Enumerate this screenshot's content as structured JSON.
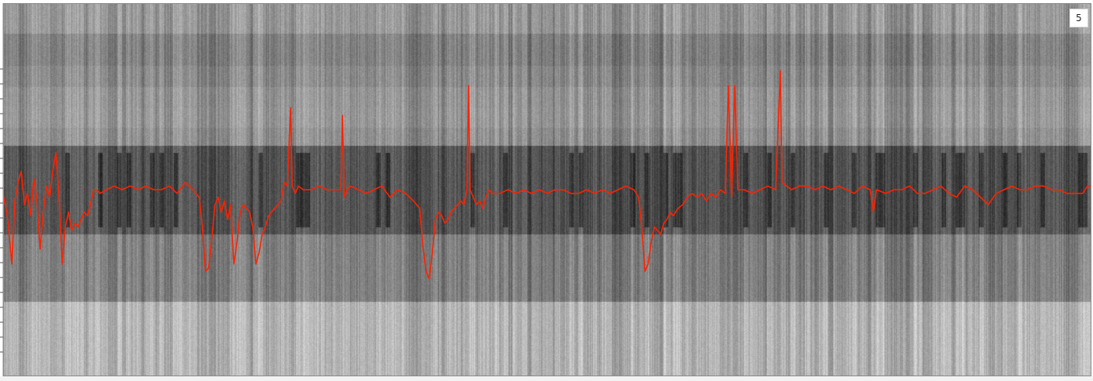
{
  "panel": {
    "track_number": "5"
  },
  "colors": {
    "trace": "#ff2200",
    "background_light": "#c9c9c9",
    "background_dark": "#111111"
  },
  "chart_data": {
    "type": "line",
    "overlay_on": "spectrogram",
    "grid": false,
    "title": "",
    "xlabel": "",
    "ylabel": "",
    "xlim": [
      0,
      1380
    ],
    "ylim": [
      0,
      100
    ],
    "y_direction": "up",
    "series": [
      {
        "name": "",
        "points": [
          [
            0,
            48
          ],
          [
            5,
            42
          ],
          [
            10,
            30
          ],
          [
            14,
            47
          ],
          [
            18,
            52
          ],
          [
            22,
            55
          ],
          [
            26,
            46
          ],
          [
            30,
            49
          ],
          [
            34,
            43
          ],
          [
            38,
            53
          ],
          [
            42,
            47
          ],
          [
            46,
            34
          ],
          [
            50,
            44
          ],
          [
            54,
            51
          ],
          [
            58,
            48
          ],
          [
            62,
            55
          ],
          [
            66,
            60
          ],
          [
            70,
            48
          ],
          [
            74,
            30
          ],
          [
            78,
            40
          ],
          [
            82,
            44
          ],
          [
            86,
            39
          ],
          [
            90,
            41
          ],
          [
            94,
            40
          ],
          [
            98,
            42
          ],
          [
            102,
            44
          ],
          [
            106,
            43
          ],
          [
            110,
            46
          ],
          [
            114,
            50
          ],
          [
            118,
            50
          ],
          [
            122,
            49
          ],
          [
            130,
            50
          ],
          [
            140,
            51
          ],
          [
            150,
            50
          ],
          [
            160,
            51
          ],
          [
            170,
            50
          ],
          [
            180,
            51
          ],
          [
            190,
            50
          ],
          [
            200,
            50
          ],
          [
            210,
            51
          ],
          [
            220,
            49
          ],
          [
            230,
            52
          ],
          [
            240,
            50
          ],
          [
            248,
            48
          ],
          [
            252,
            40
          ],
          [
            256,
            28
          ],
          [
            260,
            29
          ],
          [
            264,
            37
          ],
          [
            268,
            46
          ],
          [
            272,
            48
          ],
          [
            276,
            44
          ],
          [
            280,
            47
          ],
          [
            284,
            42
          ],
          [
            288,
            46
          ],
          [
            292,
            30
          ],
          [
            296,
            36
          ],
          [
            300,
            44
          ],
          [
            304,
            46
          ],
          [
            308,
            45
          ],
          [
            312,
            44
          ],
          [
            316,
            40
          ],
          [
            320,
            30
          ],
          [
            324,
            33
          ],
          [
            328,
            38
          ],
          [
            332,
            40
          ],
          [
            336,
            43
          ],
          [
            340,
            44
          ],
          [
            344,
            45
          ],
          [
            348,
            46
          ],
          [
            352,
            47
          ],
          [
            356,
            52
          ],
          [
            360,
            51
          ],
          [
            364,
            72
          ],
          [
            366,
            51
          ],
          [
            370,
            49
          ],
          [
            374,
            51
          ],
          [
            380,
            50
          ],
          [
            390,
            50
          ],
          [
            400,
            51
          ],
          [
            410,
            50
          ],
          [
            420,
            50
          ],
          [
            428,
            50
          ],
          [
            430,
            70
          ],
          [
            432,
            48
          ],
          [
            436,
            50
          ],
          [
            440,
            51
          ],
          [
            450,
            50
          ],
          [
            460,
            49
          ],
          [
            470,
            50
          ],
          [
            480,
            51
          ],
          [
            490,
            48
          ],
          [
            500,
            50
          ],
          [
            510,
            49
          ],
          [
            520,
            47
          ],
          [
            528,
            45
          ],
          [
            532,
            35
          ],
          [
            536,
            28
          ],
          [
            540,
            26
          ],
          [
            544,
            33
          ],
          [
            548,
            42
          ],
          [
            552,
            44
          ],
          [
            556,
            43
          ],
          [
            560,
            41
          ],
          [
            564,
            42
          ],
          [
            568,
            44
          ],
          [
            572,
            45
          ],
          [
            576,
            46
          ],
          [
            580,
            47
          ],
          [
            584,
            46
          ],
          [
            588,
            50
          ],
          [
            590,
            78
          ],
          [
            592,
            50
          ],
          [
            596,
            48
          ],
          [
            600,
            46
          ],
          [
            604,
            47
          ],
          [
            608,
            45
          ],
          [
            612,
            48
          ],
          [
            616,
            50
          ],
          [
            620,
            49
          ],
          [
            630,
            49
          ],
          [
            640,
            50
          ],
          [
            650,
            49
          ],
          [
            660,
            50
          ],
          [
            670,
            49
          ],
          [
            680,
            50
          ],
          [
            690,
            49
          ],
          [
            700,
            50
          ],
          [
            710,
            50
          ],
          [
            720,
            49
          ],
          [
            730,
            49
          ],
          [
            740,
            50
          ],
          [
            750,
            49
          ],
          [
            760,
            50
          ],
          [
            770,
            49
          ],
          [
            780,
            50
          ],
          [
            790,
            51
          ],
          [
            800,
            50
          ],
          [
            806,
            48
          ],
          [
            810,
            40
          ],
          [
            814,
            28
          ],
          [
            818,
            30
          ],
          [
            822,
            36
          ],
          [
            826,
            40
          ],
          [
            830,
            39
          ],
          [
            834,
            38
          ],
          [
            838,
            41
          ],
          [
            842,
            42
          ],
          [
            846,
            44
          ],
          [
            850,
            43
          ],
          [
            856,
            45
          ],
          [
            862,
            46
          ],
          [
            868,
            48
          ],
          [
            874,
            49
          ],
          [
            880,
            48
          ],
          [
            886,
            49
          ],
          [
            892,
            47
          ],
          [
            898,
            49
          ],
          [
            904,
            48
          ],
          [
            910,
            50
          ],
          [
            916,
            49
          ],
          [
            920,
            78
          ],
          [
            924,
            48
          ],
          [
            928,
            78
          ],
          [
            932,
            50
          ],
          [
            940,
            50
          ],
          [
            950,
            49
          ],
          [
            960,
            50
          ],
          [
            970,
            51
          ],
          [
            980,
            50
          ],
          [
            986,
            82
          ],
          [
            988,
            52
          ],
          [
            994,
            51
          ],
          [
            1000,
            50
          ],
          [
            1010,
            51
          ],
          [
            1020,
            51
          ],
          [
            1030,
            50
          ],
          [
            1040,
            51
          ],
          [
            1050,
            50
          ],
          [
            1060,
            51
          ],
          [
            1070,
            50
          ],
          [
            1080,
            49
          ],
          [
            1090,
            51
          ],
          [
            1100,
            50
          ],
          [
            1104,
            44
          ],
          [
            1108,
            50
          ],
          [
            1120,
            49
          ],
          [
            1130,
            50
          ],
          [
            1140,
            50
          ],
          [
            1150,
            51
          ],
          [
            1160,
            49
          ],
          [
            1170,
            49
          ],
          [
            1180,
            50
          ],
          [
            1190,
            51
          ],
          [
            1200,
            49
          ],
          [
            1210,
            48
          ],
          [
            1220,
            51
          ],
          [
            1230,
            50
          ],
          [
            1240,
            48
          ],
          [
            1250,
            46
          ],
          [
            1260,
            49
          ],
          [
            1270,
            50
          ],
          [
            1280,
            51
          ],
          [
            1290,
            50
          ],
          [
            1300,
            50
          ],
          [
            1310,
            51
          ],
          [
            1320,
            51
          ],
          [
            1330,
            50
          ],
          [
            1340,
            50
          ],
          [
            1350,
            49
          ],
          [
            1360,
            49
          ],
          [
            1370,
            49
          ],
          [
            1376,
            51
          ],
          [
            1380,
            51
          ]
        ]
      }
    ]
  }
}
